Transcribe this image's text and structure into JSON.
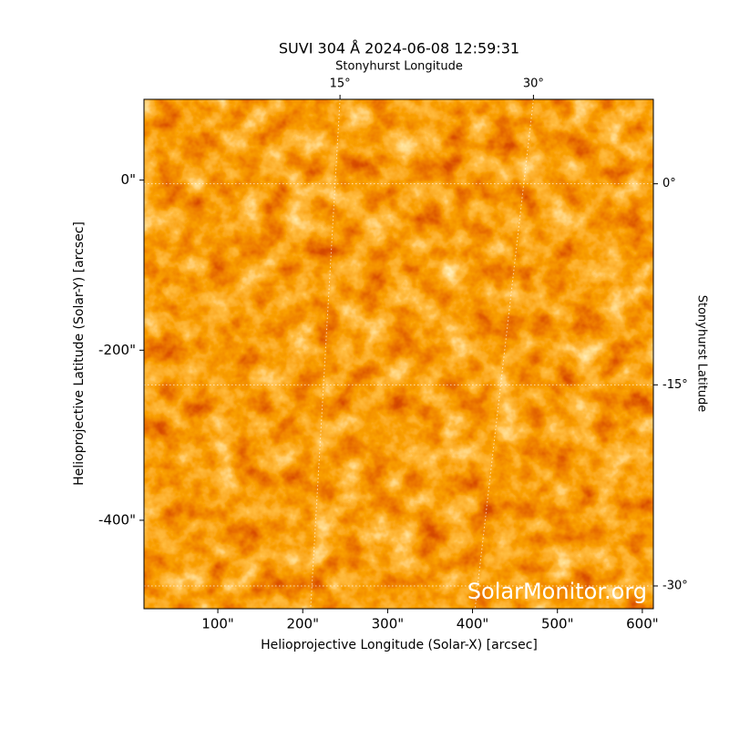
{
  "chart_data": {
    "type": "image",
    "title": "SUVI 304 Å 2024-06-08 12:59:31",
    "xlabel": "Helioprojective Longitude (Solar-X) [arcsec]",
    "ylabel": "Helioprojective Latitude (Solar-Y) [arcsec]",
    "x2label": "Stonyhurst Longitude",
    "y2label": "Stonyhurst Latitude",
    "watermark": "SolarMonitor.org",
    "xlim": [
      13,
      613
    ],
    "ylim": [
      -504,
      95
    ],
    "xticks": [
      {
        "value": 100,
        "label": "100\""
      },
      {
        "value": 200,
        "label": "200\""
      },
      {
        "value": 300,
        "label": "300\""
      },
      {
        "value": 400,
        "label": "400\""
      },
      {
        "value": 500,
        "label": "500\""
      },
      {
        "value": 600,
        "label": "600\""
      }
    ],
    "yticks": [
      {
        "value": 0,
        "label": "0\""
      },
      {
        "value": -200,
        "label": "-200\""
      },
      {
        "value": -400,
        "label": "-400\""
      }
    ],
    "x2lim": [
      -0.2,
      39.3
    ],
    "x2ticks": [
      {
        "value": 15,
        "label": "15°"
      },
      {
        "value": 30,
        "label": "30°"
      }
    ],
    "y2lim": [
      -31.7,
      6.3
    ],
    "y2ticks": [
      {
        "value": 0,
        "label": "0°"
      },
      {
        "value": -15,
        "label": "-15°"
      },
      {
        "value": -30,
        "label": "-30°"
      }
    ],
    "grid": true
  }
}
